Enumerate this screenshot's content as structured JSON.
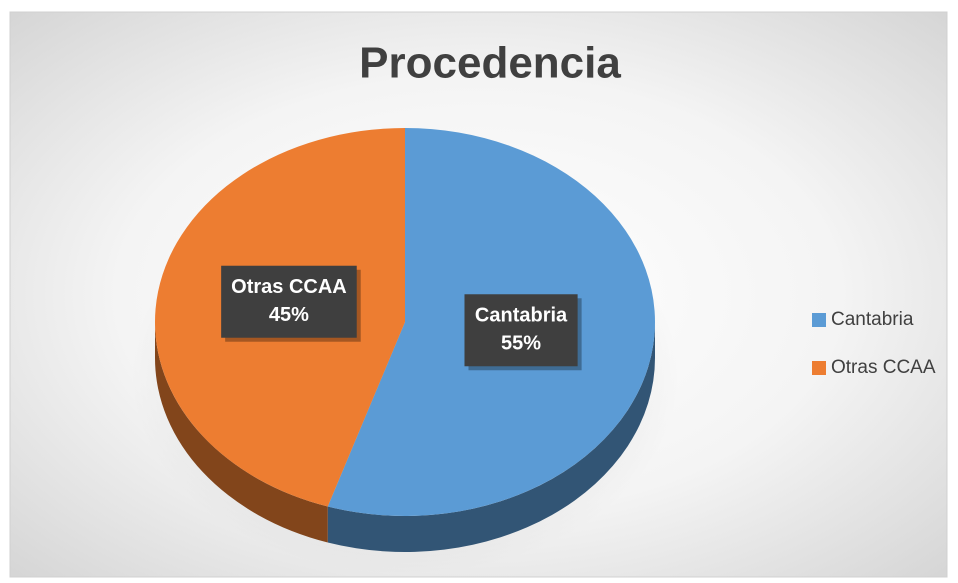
{
  "chart_data": {
    "type": "pie",
    "title": "Procedencia",
    "categories": [
      "Cantabria",
      "Otras CCAA"
    ],
    "values": [
      55,
      45
    ],
    "value_labels": [
      "55%",
      "45%"
    ],
    "colors": [
      "#5b9bd5",
      "#ed7d31"
    ],
    "legend": "right"
  }
}
